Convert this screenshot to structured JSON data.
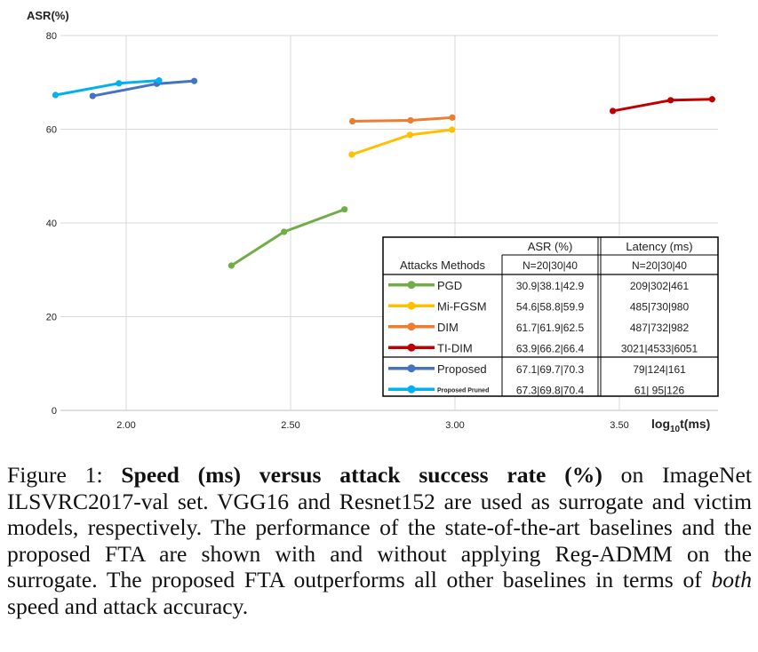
{
  "chart_data": {
    "type": "line",
    "ylabel": "ASR(%)",
    "xlabel_base": "log",
    "xlabel_sub": "10",
    "xlabel_tail": "t(ms)",
    "xlim": [
      1.8,
      3.8
    ],
    "ylim": [
      0,
      80
    ],
    "x_ticks": [
      "2.00",
      "2.50",
      "3.00",
      "3.50"
    ],
    "y_ticks": [
      "0",
      "20",
      "40",
      "60",
      "80"
    ],
    "grid": true,
    "series": [
      {
        "name": "PGD",
        "color": "#70ad47",
        "x": [
          2.32,
          2.48,
          2.664
        ],
        "y": [
          30.9,
          38.1,
          42.9
        ]
      },
      {
        "name": "Mi-FGSM",
        "color": "#ffc000",
        "x": [
          2.686,
          2.863,
          2.991
        ],
        "y": [
          54.6,
          58.8,
          59.9
        ]
      },
      {
        "name": "DIM",
        "color": "#ed7d31",
        "x": [
          2.688,
          2.865,
          2.992
        ],
        "y": [
          61.7,
          61.9,
          62.5
        ]
      },
      {
        "name": "TI-DIM",
        "color": "#c00000",
        "x": [
          3.48,
          3.656,
          3.782
        ],
        "y": [
          63.9,
          66.2,
          66.4
        ]
      },
      {
        "name": "Proposed",
        "color": "#4472c4",
        "x": [
          1.898,
          2.093,
          2.207
        ],
        "y": [
          67.1,
          69.7,
          70.3
        ]
      },
      {
        "name": "Proposed Pruned",
        "color": "#00b0f0",
        "x": [
          1.785,
          1.978,
          2.1
        ],
        "y": [
          67.3,
          69.8,
          70.4
        ]
      }
    ],
    "table": {
      "header_row1": [
        "",
        "",
        "ASR (%)",
        "Latency (ms)"
      ],
      "header_row2": [
        "Attacks Methods",
        "",
        "N=20|30|40",
        "N=20|30|40"
      ],
      "rows": [
        {
          "method": "PGD",
          "asr": "30.9|38.1|42.9",
          "latency": "209|302|461"
        },
        {
          "method": "Mi-FGSM",
          "asr": "54.6|58.8|59.9",
          "latency": "485|730|980"
        },
        {
          "method": "DIM",
          "asr": "61.7|61.9|62.5",
          "latency": "487|732|982"
        },
        {
          "method": "TI-DIM",
          "asr": "63.9|66.2|66.4",
          "latency": "3021|4533|6051"
        },
        {
          "method": "Proposed",
          "asr": "67.1|69.7|70.3",
          "latency": "79|124|161"
        },
        {
          "method": "Proposed Pruned",
          "asr": "67.3|69.8|70.4",
          "latency": "61|  95|126"
        }
      ]
    }
  },
  "caption": {
    "prefix": "Figure 1: ",
    "bold": "Speed (ms) versus attack success rate (%)",
    "part1": " on ImageNet ILSVRC2017-val set. VGG16 and Resnet152 are used as surrogate and victim models, respectively. The performance of the state-of-the-art baselines and the proposed FTA are shown with and without applying Reg-ADMM on the surrogate. The proposed FTA outperforms all other baselines in terms of ",
    "italic": "both",
    "part2": " speed and attack accuracy."
  }
}
